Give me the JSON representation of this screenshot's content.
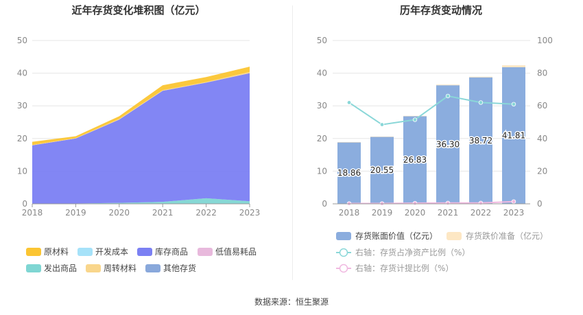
{
  "source_label": "数据来源：恒生聚源",
  "colors": {
    "raw": "#fbc533",
    "wip": "#a6e2f9",
    "finished": "#7b80f3",
    "consumables": "#e8b9dc",
    "shipped": "#7fd6d3",
    "turnover": "#f9d68c",
    "other": "#89a8db",
    "bar": "#8badde",
    "reserve": "#fde7c4",
    "line1": "#8ad7d8",
    "line2": "#f0b8e0"
  },
  "chart_data": [
    {
      "type": "area",
      "title": "近年存货变化堆积图（亿元）",
      "x": [
        "2018",
        "2019",
        "2020",
        "2021",
        "2022",
        "2023"
      ],
      "ylim": [
        0,
        50
      ],
      "yticks": [
        0,
        10,
        20,
        30,
        40,
        50
      ],
      "legend_position": "bottom",
      "series": [
        {
          "name": "原材料",
          "key": "raw",
          "values": [
            1.0,
            0.6,
            0.8,
            1.5,
            1.5,
            1.6
          ]
        },
        {
          "name": "开发成本",
          "key": "wip",
          "values": [
            0,
            0,
            0,
            0,
            0,
            0
          ]
        },
        {
          "name": "库存商品",
          "key": "finished",
          "values": [
            17.8,
            19.9,
            25.5,
            34.0,
            35.4,
            39.2
          ]
        },
        {
          "name": "低值易耗品",
          "key": "consumables",
          "values": [
            0,
            0,
            0,
            0,
            0,
            0
          ]
        },
        {
          "name": "发出商品",
          "key": "shipped",
          "values": [
            0.1,
            0.1,
            0.3,
            0.6,
            1.7,
            0.8
          ]
        },
        {
          "name": "周转材料",
          "key": "turnover",
          "values": [
            0.1,
            0.1,
            0.2,
            0.2,
            0.2,
            0.4
          ]
        },
        {
          "name": "其他存货",
          "key": "other",
          "values": [
            0,
            0,
            0,
            0,
            0,
            0
          ]
        }
      ]
    },
    {
      "type": "bar",
      "title": "历年存货变动情况",
      "categories": [
        "2018",
        "2019",
        "2020",
        "2021",
        "2022",
        "2023"
      ],
      "ylim": [
        0,
        50
      ],
      "yticks": [
        0,
        10,
        20,
        30,
        40,
        50
      ],
      "y2lim": [
        0,
        100
      ],
      "y2ticks": [
        0,
        20,
        40,
        60,
        80,
        100
      ],
      "legend_position": "bottom",
      "bars": {
        "name": "存货账面价值（亿元）",
        "values": [
          18.86,
          20.55,
          26.83,
          36.3,
          38.72,
          41.81
        ],
        "labels": [
          "18.86",
          "20.55",
          "26.83",
          "36.30",
          "38.72",
          "41.81"
        ]
      },
      "reserve": {
        "name": "存货跌价准备（亿元）",
        "values": [
          0.05,
          0.05,
          0.1,
          0.2,
          0.2,
          0.6
        ]
      },
      "line1": {
        "name": "右轴：存货占净资产比例（%）",
        "values": [
          62,
          48.5,
          51.5,
          66,
          62,
          61
        ]
      },
      "line2": {
        "name": "右轴：存货计提比例（%）",
        "values": [
          0.2,
          0.2,
          0.4,
          0.5,
          0.5,
          1.4
        ]
      }
    }
  ]
}
